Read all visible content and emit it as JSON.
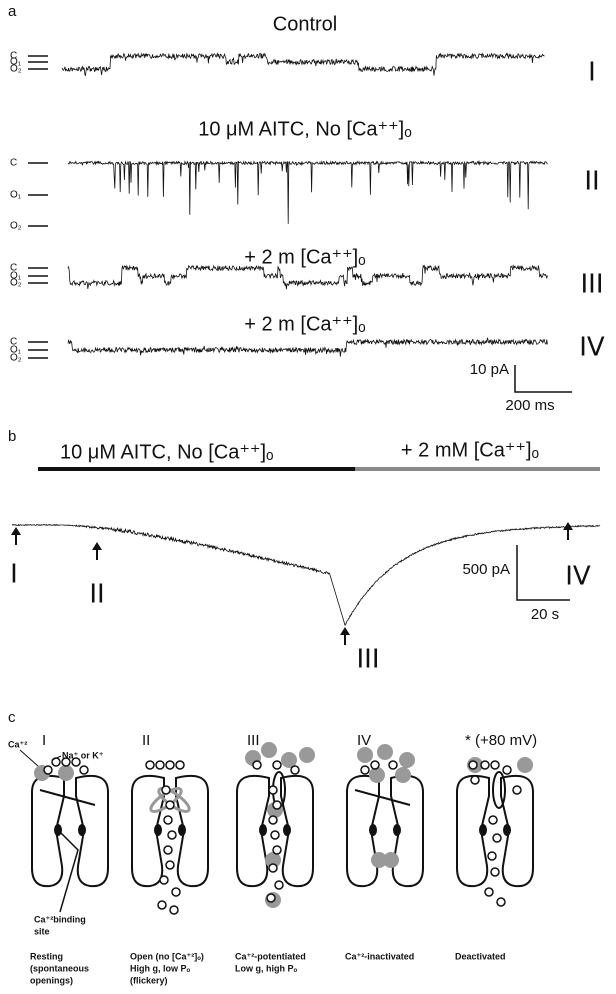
{
  "panel_a": {
    "label": "a",
    "traces": [
      {
        "title": "Control",
        "levels": [
          "C",
          "O₁",
          "O₂"
        ],
        "numeral": "I"
      },
      {
        "title": "10 μM AITC, No [Ca⁺⁺]ₒ",
        "levels": [
          "C",
          "O₁",
          "O₂"
        ],
        "numeral": "II"
      },
      {
        "title": "+ 2 m [Ca⁺⁺]ₒ",
        "levels": [
          "C",
          "O₁",
          "O₂"
        ],
        "numeral": "III"
      },
      {
        "title": "+ 2 m [Ca⁺⁺]ₒ",
        "levels": [
          "C",
          "O₁",
          "O₂"
        ],
        "numeral": "IV"
      }
    ],
    "scale_bar": {
      "current": "10 pA",
      "time": "200 ms"
    }
  },
  "panel_b": {
    "label": "b",
    "conditions": [
      "10 μM AITC, No [Ca⁺⁺]ₒ",
      "+ 2 mM [Ca⁺⁺]ₒ"
    ],
    "markers": [
      "I",
      "II",
      "III",
      "IV"
    ],
    "scale_bar": {
      "current": "500 pA",
      "time": "20 s"
    }
  },
  "panel_c": {
    "label": "c",
    "calcium_label": "Ca⁺²",
    "ion_label": "Na⁺ or K⁺",
    "site_label": [
      "Ca⁺²binding",
      "site"
    ],
    "states": [
      {
        "numeral": "I",
        "caption": [
          "Resting",
          "(spontaneous",
          "openings)"
        ]
      },
      {
        "numeral": "II",
        "caption": [
          "Open (no [Ca⁺²]ₒ)",
          "High g, low Pₒ",
          "(flickery)"
        ]
      },
      {
        "numeral": "III",
        "caption": [
          "Ca⁺²-potentiated",
          "Low g, high Pₒ"
        ]
      },
      {
        "numeral": "IV",
        "caption": [
          "Ca⁺²-inactivated"
        ]
      },
      {
        "numeral": "* (+80 mV)",
        "caption": [
          "Deactivated"
        ]
      }
    ]
  }
}
